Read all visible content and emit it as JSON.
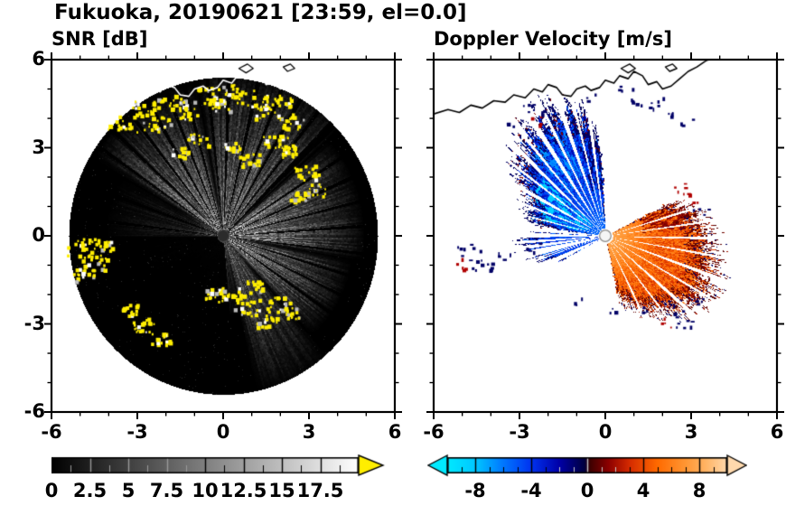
{
  "title": "Fukuoka, 20190621 [23:59, el=0.0]",
  "map": {
    "coastline": [
      [
        -6,
        4.15
      ],
      [
        -5.5,
        4.3
      ],
      [
        -5.1,
        4.2
      ],
      [
        -4.7,
        4.45
      ],
      [
        -4.3,
        4.35
      ],
      [
        -3.9,
        4.6
      ],
      [
        -3.5,
        4.55
      ],
      [
        -3.2,
        4.8
      ],
      [
        -2.8,
        4.7
      ],
      [
        -2.5,
        5.0
      ],
      [
        -2.2,
        4.9
      ],
      [
        -2.0,
        5.15
      ],
      [
        -1.7,
        5.05
      ],
      [
        -1.5,
        4.8
      ],
      [
        -1.2,
        4.75
      ],
      [
        -1.0,
        5.0
      ],
      [
        -0.7,
        5.1
      ],
      [
        -0.5,
        4.95
      ],
      [
        -0.2,
        5.05
      ],
      [
        0.0,
        5.3
      ],
      [
        0.3,
        5.2
      ],
      [
        0.5,
        5.45
      ],
      [
        0.8,
        5.35
      ],
      [
        1.0,
        5.6
      ],
      [
        1.3,
        5.45
      ],
      [
        1.5,
        5.15
      ],
      [
        1.8,
        5.25
      ],
      [
        2.0,
        5.0
      ],
      [
        2.3,
        5.1
      ],
      [
        2.6,
        5.35
      ],
      [
        2.9,
        5.6
      ],
      [
        3.2,
        5.75
      ],
      [
        3.5,
        5.95
      ],
      [
        3.8,
        6.1
      ]
    ],
    "islands": [
      [
        [
          0.55,
          5.7
        ],
        [
          0.85,
          5.85
        ],
        [
          1.05,
          5.7
        ],
        [
          0.8,
          5.55
        ]
      ],
      [
        [
          2.1,
          5.75
        ],
        [
          2.35,
          5.85
        ],
        [
          2.5,
          5.7
        ],
        [
          2.25,
          5.6
        ]
      ]
    ]
  },
  "chart_data": [
    {
      "type": "heatmap",
      "panel": "snr",
      "title": "SNR [dB]",
      "xlim": [
        -6,
        6
      ],
      "ylim": [
        -6,
        6
      ],
      "xticks": [
        -6,
        -3,
        0,
        3,
        6
      ],
      "yticks": [
        -6,
        -3,
        0,
        3,
        6
      ],
      "minor_tick_step": 1,
      "scan_radius": 5.4,
      "colorbar": {
        "min": 0,
        "max": 20,
        "tick_labels": [
          0,
          2.5,
          5,
          7.5,
          10,
          12.5,
          15,
          17.5
        ],
        "minor_step": 1.25,
        "colormap": "grayscale",
        "over_color": "#ffee00"
      },
      "echo_color": "#ffee00",
      "sectors": [
        {
          "a0": -78,
          "a1": -48,
          "gain": 0.3,
          "reach": 4.9
        },
        {
          "a0": -48,
          "a1": -10,
          "gain": 0.52,
          "reach": 4.0
        },
        {
          "a0": -10,
          "a1": 42,
          "gain": 0.55,
          "reach": 4.3
        },
        {
          "a0": 42,
          "a1": 100,
          "gain": 0.4,
          "reach": 5.1
        },
        {
          "a0": 100,
          "a1": 150,
          "gain": 0.47,
          "reach": 4.6
        },
        {
          "a0": 150,
          "a1": 215,
          "gain": 0.12,
          "reach": 3.6
        },
        {
          "a0": 243,
          "a1": 287,
          "gain": 0.17,
          "reach": 2.4
        }
      ],
      "blocked_rays": [
        [
          -35,
          0.8
        ],
        [
          -26,
          0.6
        ],
        [
          -17,
          0.7
        ],
        [
          -7,
          0.6
        ],
        [
          4,
          0.7
        ],
        [
          14,
          0.6
        ],
        [
          24,
          0.8
        ],
        [
          33,
          0.7
        ],
        [
          45,
          1.6
        ],
        [
          52,
          0.7
        ],
        [
          60,
          0.8
        ],
        [
          68,
          0.7
        ],
        [
          77,
          0.9
        ],
        [
          88,
          0.8
        ],
        [
          96,
          0.7
        ],
        [
          105,
          0.8
        ],
        [
          112,
          0.7
        ],
        [
          120,
          0.9
        ],
        [
          128,
          0.7
        ],
        [
          137,
          0.8
        ],
        [
          145,
          0.7
        ],
        [
          160,
          1.0
        ],
        [
          173,
          0.8
        ],
        [
          188,
          1.2
        ],
        [
          202,
          1.0
        ],
        [
          262,
          0.9
        ],
        [
          274,
          0.8
        ]
      ],
      "echo_patches": [
        [
          -3.4,
          3.9,
          0.7
        ],
        [
          -2.7,
          4.4,
          0.6
        ],
        [
          -2.2,
          3.8,
          0.5
        ],
        [
          -1.7,
          4.6,
          0.5
        ],
        [
          -1.2,
          4.2,
          0.4
        ],
        [
          -0.6,
          4.8,
          0.5
        ],
        [
          -0.1,
          4.5,
          0.4
        ],
        [
          0.4,
          4.9,
          0.5
        ],
        [
          1.0,
          4.7,
          0.6
        ],
        [
          1.5,
          4.3,
          0.5
        ],
        [
          2.0,
          4.6,
          0.4
        ],
        [
          2.4,
          3.9,
          0.5
        ],
        [
          1.8,
          3.2,
          0.5
        ],
        [
          2.3,
          2.9,
          0.4
        ],
        [
          2.9,
          2.2,
          0.5
        ],
        [
          3.2,
          1.6,
          0.4
        ],
        [
          2.6,
          1.4,
          0.35
        ],
        [
          0.9,
          2.6,
          0.4
        ],
        [
          0.3,
          3.1,
          0.35
        ],
        [
          -0.9,
          3.3,
          0.4
        ],
        [
          -1.5,
          2.9,
          0.35
        ],
        [
          -5.0,
          -0.4,
          0.6
        ],
        [
          -4.5,
          -0.9,
          0.5
        ],
        [
          -4.9,
          -1.3,
          0.4
        ],
        [
          -4.2,
          -0.3,
          0.35
        ],
        [
          -0.3,
          -2.0,
          0.4
        ],
        [
          0.3,
          -1.9,
          0.45
        ],
        [
          0.8,
          -2.4,
          0.55
        ],
        [
          1.4,
          -2.8,
          0.5
        ],
        [
          1.9,
          -2.3,
          0.45
        ],
        [
          2.4,
          -2.6,
          0.35
        ],
        [
          1.1,
          -1.7,
          0.35
        ],
        [
          -2.8,
          -3.0,
          0.45
        ],
        [
          -2.2,
          -3.5,
          0.4
        ],
        [
          -3.3,
          -2.5,
          0.35
        ]
      ],
      "center_dot": {
        "radius": 0.19,
        "color": "#2b2b2b"
      }
    },
    {
      "type": "heatmap",
      "panel": "velocity",
      "title": "Doppler Velocity [m/s]",
      "xlim": [
        -6,
        6
      ],
      "ylim": [
        -6,
        6
      ],
      "xticks": [
        -6,
        -3,
        0,
        3,
        6
      ],
      "yticks": [
        -6,
        -3,
        0,
        3,
        6
      ],
      "minor_tick_step": 1,
      "scan_radius": 5.4,
      "colorbar": {
        "min": -10,
        "max": 10,
        "tick_labels": [
          -8,
          -4,
          0,
          4,
          8
        ],
        "minor_step": 1,
        "under_color": "#00eaff",
        "over_color": "#ffd9ad",
        "stops": [
          [
            -10,
            "#00eaff"
          ],
          [
            -8,
            "#00c8ff"
          ],
          [
            -6,
            "#0077ff"
          ],
          [
            -4,
            "#0033f0"
          ],
          [
            -2,
            "#0000a8"
          ],
          [
            -0.2,
            "#000040"
          ],
          [
            0.2,
            "#3d0000"
          ],
          [
            1.5,
            "#8b0000"
          ],
          [
            3,
            "#d42a00"
          ],
          [
            5,
            "#ff6a00"
          ],
          [
            7,
            "#ff9633"
          ],
          [
            8.5,
            "#ffb566"
          ],
          [
            10,
            "#ffd9ad"
          ]
        ]
      },
      "fans": [
        {
          "a0": 93,
          "a1": 172,
          "reach": [
            [
              93,
              2.6
            ],
            [
              100,
              4.0
            ],
            [
              112,
              4.35
            ],
            [
              125,
              4.2
            ],
            [
              138,
              3.8
            ],
            [
              150,
              3.2
            ],
            [
              162,
              2.6
            ],
            [
              172,
              2.2
            ]
          ],
          "v_base": -4.2,
          "v_spread": 2.2,
          "near_center_v": -5.5,
          "gaps": [
            [
              98,
              0.9
            ],
            [
              104,
              0.6
            ],
            [
              110,
              1.1
            ],
            [
              117,
              0.7
            ],
            [
              123,
              1.2
            ],
            [
              130,
              0.7
            ],
            [
              136,
              1.0
            ],
            [
              143,
              0.7
            ],
            [
              151,
              1.2
            ],
            [
              159,
              0.8
            ],
            [
              166,
              0.6
            ]
          ],
          "rim": [
            "#000066",
            "#00004d",
            "#7a0000"
          ],
          "zones": [
            {
              "a0": 138,
              "a1": 168,
              "r0": 0.6,
              "r1": 2.9,
              "v": -8.3,
              "prob": 0.4
            },
            {
              "a0": 93,
              "a1": 107,
              "r0": 1.6,
              "r1": 3.8,
              "v": -1.0,
              "prob": 0.55
            },
            {
              "a0": 112,
              "a1": 132,
              "r0": 2.0,
              "r1": 3.9,
              "v": -6.5,
              "prob": 0.35
            }
          ]
        },
        {
          "a0": -78,
          "a1": 27,
          "reach": [
            [
              -78,
              2.0
            ],
            [
              -60,
              2.7
            ],
            [
              -45,
              3.3
            ],
            [
              -30,
              3.8
            ],
            [
              -15,
              3.7
            ],
            [
              0,
              3.4
            ],
            [
              12,
              3.0
            ],
            [
              27,
              2.3
            ]
          ],
          "v_base": 4.5,
          "v_spread": 2.0,
          "near_center_v": 7.8,
          "gaps": [
            [
              -64,
              0.8
            ],
            [
              -52,
              0.6
            ],
            [
              -41,
              1.0
            ],
            [
              -30,
              0.6
            ],
            [
              -20,
              0.9
            ],
            [
              -10,
              0.6
            ],
            [
              -1,
              0.8
            ],
            [
              8,
              0.6
            ],
            [
              17,
              0.8
            ]
          ],
          "rim": [
            "#5c0000",
            "#9e1500",
            "#000060"
          ],
          "zones": [
            {
              "a0": 5,
              "a1": 27,
              "r0": 1.3,
              "r1": 3.2,
              "v": 1.6,
              "prob": 0.45
            }
          ]
        },
        {
          "a0": 176,
          "a1": 208,
          "reach": [
            [
              176,
              2.3
            ],
            [
              188,
              2.9
            ],
            [
              198,
              2.4
            ],
            [
              208,
              1.7
            ]
          ],
          "v_base": -4.5,
          "v_spread": 1.5,
          "sparse": 0.45,
          "gaps": [
            [
              184,
              1.0
            ],
            [
              194,
              1.2
            ],
            [
              203,
              0.8
            ]
          ],
          "rim": [
            "#000066"
          ]
        }
      ],
      "clusters": [
        [
          -4.75,
          -0.55,
          "navy",
          10,
          0.45
        ],
        [
          -4.35,
          -0.95,
          "navy",
          8,
          0.4
        ],
        [
          -4.95,
          -0.95,
          "red",
          5,
          0.3
        ],
        [
          -3.6,
          -0.75,
          "navy",
          5,
          0.3
        ],
        [
          -2.55,
          -0.35,
          "navy",
          4,
          0.25
        ],
        [
          2.35,
          -2.45,
          "navy",
          9,
          0.45
        ],
        [
          2.75,
          -2.85,
          "navy",
          7,
          0.4
        ],
        [
          2.05,
          -2.95,
          "red",
          4,
          0.3
        ],
        [
          3.1,
          -2.25,
          "navy",
          5,
          0.3
        ],
        [
          1.55,
          -2.6,
          "navy",
          4,
          0.3
        ],
        [
          1.25,
          4.75,
          "navy",
          6,
          0.4
        ],
        [
          1.85,
          4.55,
          "navy",
          5,
          0.35
        ],
        [
          0.7,
          5.05,
          "navy",
          4,
          0.3
        ],
        [
          2.35,
          4.25,
          "navy",
          4,
          0.3
        ],
        [
          -0.45,
          4.7,
          "navy",
          3,
          0.25
        ],
        [
          -1.95,
          4.25,
          "navy",
          6,
          0.4
        ],
        [
          -2.35,
          3.95,
          "red",
          4,
          0.3
        ],
        [
          -2.75,
          4.35,
          "navy",
          5,
          0.3
        ],
        [
          -3.15,
          3.85,
          "navy",
          4,
          0.3
        ],
        [
          3.05,
          1.35,
          "red",
          6,
          0.35
        ],
        [
          3.35,
          0.95,
          "navy",
          4,
          0.3
        ],
        [
          2.65,
          1.7,
          "red",
          4,
          0.3
        ],
        [
          -0.85,
          -2.15,
          "navy",
          3,
          0.25
        ],
        [
          0.35,
          -2.55,
          "navy",
          3,
          0.25
        ],
        [
          2.85,
          3.95,
          "navy",
          3,
          0.25
        ]
      ],
      "cluster_colors": {
        "navy": "#000066",
        "red": "#b00000"
      },
      "center_dot": {
        "radius": 0.2,
        "color": "#f5f5f5",
        "ring": "#8a8a8a"
      }
    }
  ]
}
